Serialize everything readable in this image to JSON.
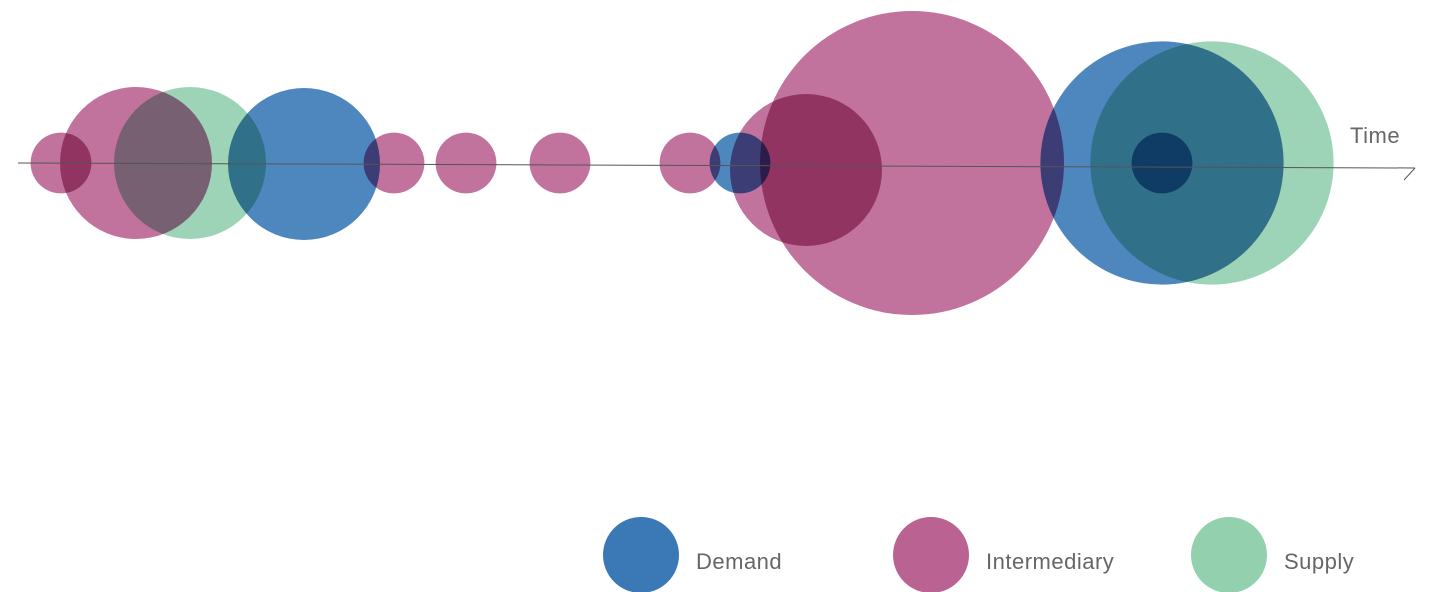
{
  "chart_data": {
    "type": "scatter",
    "subtype": "bubble-timeline",
    "xlabel": "Time",
    "ylabel": "",
    "grid": false,
    "legend_position": "bottom-right",
    "colors": {
      "Demand": "#2f72b1",
      "Intermediary": "#b65a8c",
      "Supply": "#8ccdaa"
    },
    "series": [
      {
        "name": "Demand",
        "points": [
          {
            "x": 1,
            "size": 5
          },
          {
            "x": 2,
            "size": 2
          },
          {
            "x": 3,
            "size": 8
          },
          {
            "x": 3,
            "size": 2
          }
        ]
      },
      {
        "name": "Intermediary",
        "points": [
          {
            "x": 1,
            "size": 2
          },
          {
            "x": 1,
            "size": 5
          },
          {
            "x": 1,
            "size": 2
          },
          {
            "x": 1,
            "size": 2
          },
          {
            "x": 2,
            "size": 2
          },
          {
            "x": 2,
            "size": 2
          },
          {
            "x": 2,
            "size": 5
          },
          {
            "x": 2,
            "size": 10
          }
        ]
      },
      {
        "name": "Supply",
        "points": [
          {
            "x": 1,
            "size": 5
          },
          {
            "x": 3,
            "size": 8
          }
        ]
      }
    ]
  }
}
